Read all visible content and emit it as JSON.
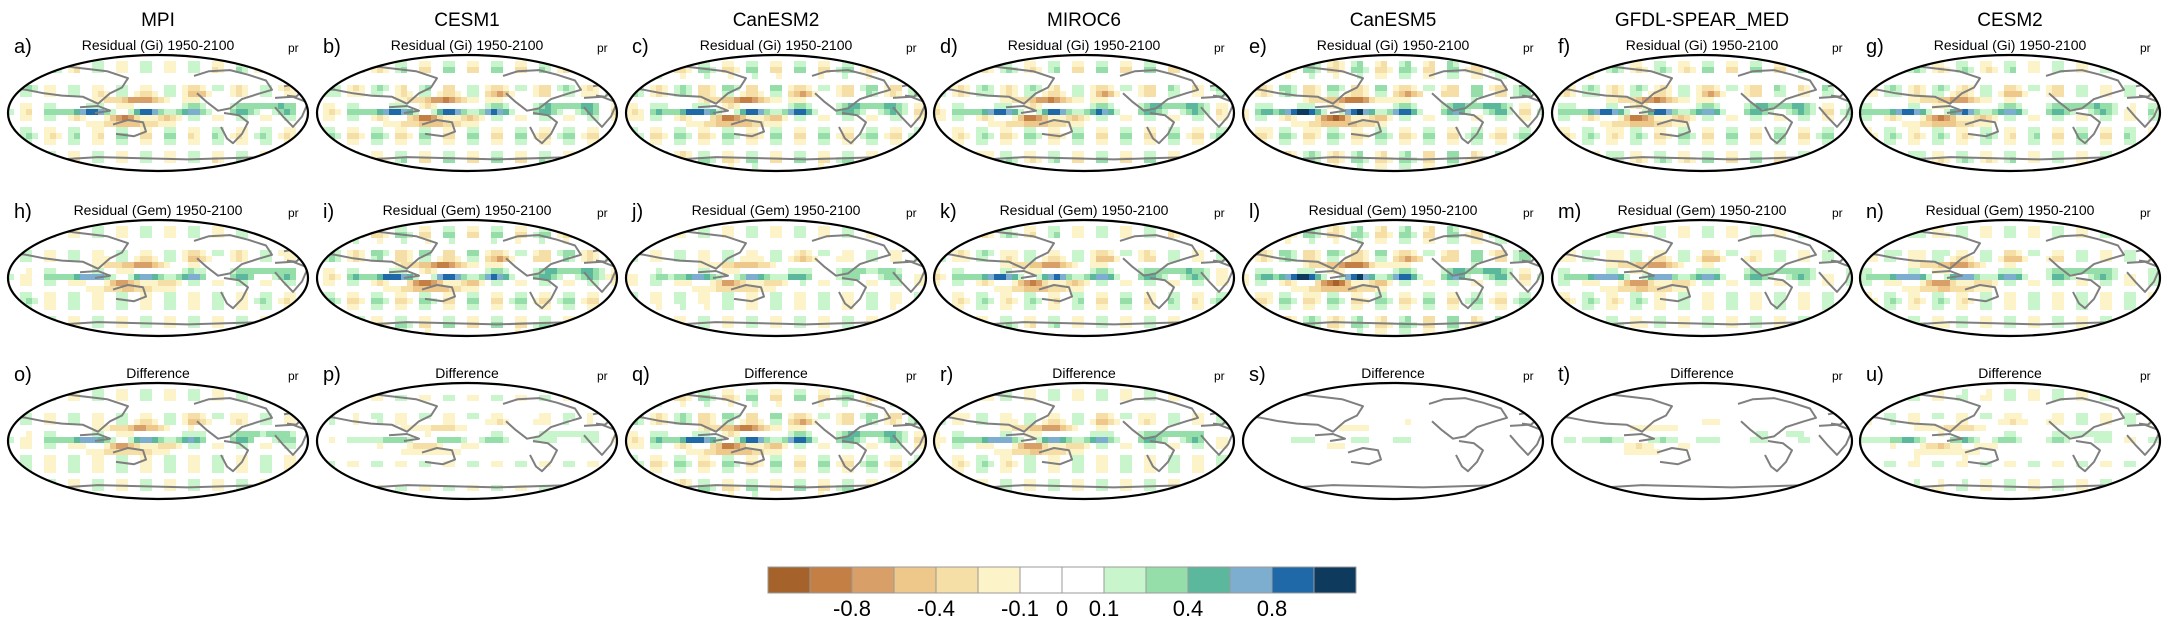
{
  "figure": {
    "models": [
      "MPI",
      "CESM1",
      "CanESM2",
      "MIROC6",
      "CanESM5",
      "GFDL-SPEAR_MED",
      "CESM2"
    ],
    "row_titles": [
      "Residual (Gi) 1950-2100",
      "Residual (Gem) 1950-2100",
      "Difference"
    ],
    "variable": "pr",
    "panel_letters": [
      [
        "a)",
        "b)",
        "c)",
        "d)",
        "e)",
        "f)",
        "g)"
      ],
      [
        "h)",
        "i)",
        "j)",
        "k)",
        "l)",
        "m)",
        "n)"
      ],
      [
        "o)",
        "p)",
        "q)",
        "r)",
        "s)",
        "t)",
        "u)"
      ]
    ],
    "amplitude": [
      [
        0.9,
        0.95,
        1.0,
        0.95,
        1.05,
        0.95,
        0.9
      ],
      [
        0.85,
        1.0,
        0.75,
        0.9,
        1.05,
        0.85,
        0.85
      ],
      [
        0.8,
        0.5,
        1.0,
        0.85,
        0.25,
        0.35,
        0.55
      ]
    ]
  },
  "colorbar": {
    "colors": [
      "#a5622a",
      "#c47f45",
      "#d8a068",
      "#edc88a",
      "#f5dfa6",
      "#fdf3c8",
      "#ffffff",
      "#ffffff",
      "#c8f5cc",
      "#95deaa",
      "#5bb89c",
      "#7eaecf",
      "#1f69a8",
      "#0e3a5e"
    ],
    "labels": [
      "-0.8",
      "-0.4",
      "-0.1",
      "0",
      "0.1",
      "0.4",
      "0.8"
    ]
  },
  "colors": {
    "land_outline": "#7f7f7f",
    "map_border": "#000000"
  }
}
